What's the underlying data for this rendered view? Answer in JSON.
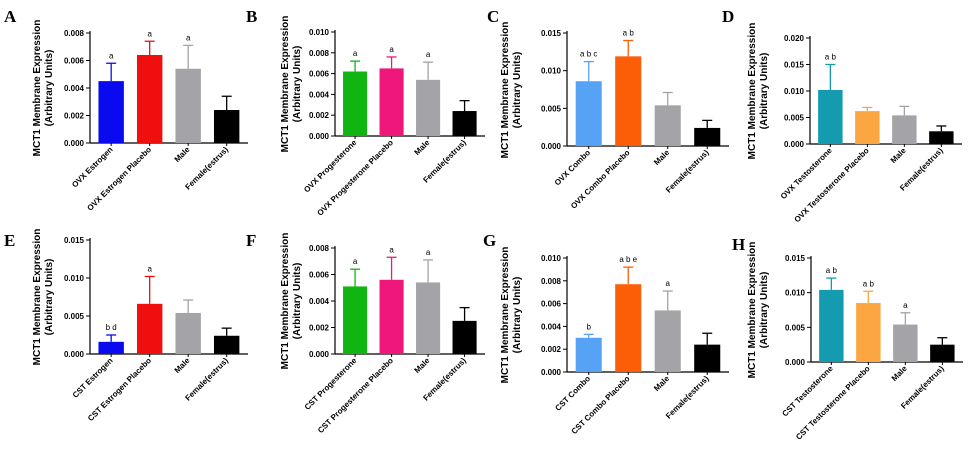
{
  "chart_data": [
    {
      "panel": "A",
      "type": "bar",
      "ylabel": "MCT1 Membrane Expression",
      "ylabel2": "(Arbitrary Units)",
      "ylim": [
        0,
        0.008
      ],
      "yticks": [
        "0.000",
        "0.002",
        "0.004",
        "0.006",
        "0.008"
      ],
      "categories": [
        "OVX Estrogen",
        "OVX Estrogen Placebo",
        "Male",
        "Female(estrus)"
      ],
      "values": [
        0.0045,
        0.0064,
        0.0054,
        0.0024
      ],
      "errors": [
        0.0013,
        0.001,
        0.0017,
        0.001
      ],
      "annotations": [
        "a",
        "a",
        "a",
        ""
      ],
      "colors": [
        "#0a0af0",
        "#f00f0f",
        "#a3a3a8",
        "#000000"
      ]
    },
    {
      "panel": "B",
      "type": "bar",
      "ylabel": "MCT1 Membrane Expression",
      "ylabel2": "(Arbitrary Units)",
      "ylim": [
        0,
        0.01
      ],
      "yticks": [
        "0.000",
        "0.002",
        "0.004",
        "0.006",
        "0.008",
        "0.010"
      ],
      "categories": [
        "OVX Progesterone",
        "OVX Progesterone Placebo",
        "Male",
        "Female(estrus)"
      ],
      "values": [
        0.0062,
        0.0065,
        0.0054,
        0.0024
      ],
      "errors": [
        0.001,
        0.0011,
        0.0017,
        0.001
      ],
      "annotations": [
        "a",
        "a",
        "a",
        ""
      ],
      "colors": [
        "#11b511",
        "#f0177a",
        "#a3a3a8",
        "#000000"
      ]
    },
    {
      "panel": "C",
      "type": "bar",
      "ylabel": "MCT1 Membrane Expression",
      "ylabel2": "(Arbitrary Units)",
      "ylim": [
        0,
        0.015
      ],
      "yticks": [
        "0.000",
        "0.005",
        "0.010",
        "0.015"
      ],
      "categories": [
        "OVX Combo",
        "OVX Combo Placebo",
        "Male",
        "Female(estrus)"
      ],
      "values": [
        0.0086,
        0.0119,
        0.0054,
        0.0024
      ],
      "errors": [
        0.0026,
        0.0021,
        0.0017,
        0.001
      ],
      "annotations": [
        "a b c",
        "a b",
        "",
        ""
      ],
      "colors": [
        "#56a3f5",
        "#fb5e07",
        "#a3a3a8",
        "#000000"
      ]
    },
    {
      "panel": "D",
      "type": "bar",
      "ylabel": "MCT1 Membrane Expression",
      "ylabel2": "(Arbitrary Units)",
      "ylim": [
        0,
        0.02
      ],
      "yticks": [
        "0.000",
        "0.005",
        "0.010",
        "0.015",
        "0.020"
      ],
      "categories": [
        "OVX Testosterone",
        "OVX Testosterone Placebo",
        "Male",
        "Female(estrus)"
      ],
      "values": [
        0.0102,
        0.0062,
        0.0054,
        0.0024
      ],
      "errors": [
        0.0048,
        0.0007,
        0.0017,
        0.001
      ],
      "annotations": [
        "a b",
        "",
        "",
        ""
      ],
      "colors": [
        "#149bb0",
        "#fba640",
        "#a3a3a8",
        "#000000"
      ]
    },
    {
      "panel": "E",
      "type": "bar",
      "ylabel": "MCT1 Membrane Expression",
      "ylabel2": "(Arbitrary Units)",
      "ylim": [
        0,
        0.015
      ],
      "yticks": [
        "0.000",
        "0.005",
        "0.010",
        "0.015"
      ],
      "categories": [
        "CST Estrogen",
        "CST Estrogen Placebo",
        "Male",
        "Female(estrus)"
      ],
      "values": [
        0.0016,
        0.0066,
        0.0054,
        0.0024
      ],
      "errors": [
        0.0009,
        0.0036,
        0.0017,
        0.001
      ],
      "annotations": [
        "b d",
        "a",
        "",
        ""
      ],
      "colors": [
        "#0a0af0",
        "#f00f0f",
        "#a3a3a8",
        "#000000"
      ]
    },
    {
      "panel": "F",
      "type": "bar",
      "ylabel": "MCT1 Membrane Expression",
      "ylabel2": "(Arbitrary Units)",
      "ylim": [
        0,
        0.008
      ],
      "yticks": [
        "0.000",
        "0.002",
        "0.004",
        "0.006",
        "0.008"
      ],
      "categories": [
        "CST Progesterone",
        "CST Progesterone Placebo",
        "Male",
        "Female(estrus)"
      ],
      "values": [
        0.0051,
        0.0056,
        0.0054,
        0.0025
      ],
      "errors": [
        0.0013,
        0.0017,
        0.0017,
        0.001
      ],
      "annotations": [
        "a",
        "a",
        "a",
        ""
      ],
      "colors": [
        "#11b511",
        "#f0177a",
        "#a3a3a8",
        "#000000"
      ]
    },
    {
      "panel": "G",
      "type": "bar",
      "ylabel": "MCT1 Membrane Expression",
      "ylabel2": "(Arbitrary Units)",
      "ylim": [
        0,
        0.01
      ],
      "yticks": [
        "0.000",
        "0.002",
        "0.004",
        "0.006",
        "0.008",
        "0.010"
      ],
      "categories": [
        "CST Combo",
        "CST Combo Placebo",
        "Male",
        "Female(estrus)"
      ],
      "values": [
        0.003,
        0.0077,
        0.0054,
        0.0024
      ],
      "errors": [
        0.0003,
        0.0015,
        0.0017,
        0.001
      ],
      "annotations": [
        "b",
        "a b e",
        "a",
        ""
      ],
      "colors": [
        "#56a3f5",
        "#fb5e07",
        "#a3a3a8",
        "#000000"
      ]
    },
    {
      "panel": "H",
      "type": "bar",
      "ylabel": "MCT1 Membrane Expression",
      "ylabel2": "(Arbitrary Units)",
      "ylim": [
        0,
        0.015
      ],
      "yticks": [
        "0.000",
        "0.005",
        "0.010",
        "0.015"
      ],
      "categories": [
        "CST Testosterone",
        "CST Testosterone Placebo",
        "Male",
        "Female(estrus)"
      ],
      "values": [
        0.0104,
        0.0085,
        0.0054,
        0.0025
      ],
      "errors": [
        0.0017,
        0.0017,
        0.0017,
        0.001
      ],
      "annotations": [
        "a b",
        "a b",
        "a",
        ""
      ],
      "colors": [
        "#149bb0",
        "#fba640",
        "#a3a3a8",
        "#000000"
      ]
    }
  ]
}
